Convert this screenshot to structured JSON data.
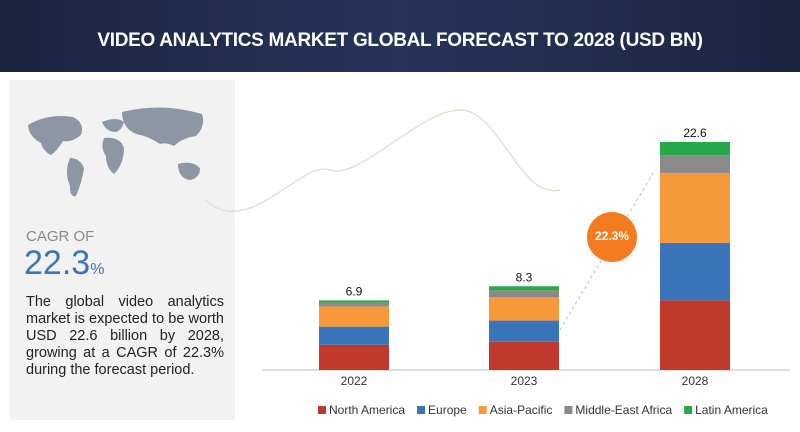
{
  "title": "VIDEO ANALYTICS MARKET GLOBAL FORECAST TO 2028 (USD BN)",
  "sidebar": {
    "label": "CAGR OF",
    "value": "22.3",
    "unit": "%",
    "text": "The global video analytics market is expected to be worth USD 22.6 billion by 2028, growing at a CAGR of 22.3% during the forecast period."
  },
  "chart_data": {
    "type": "stacked_bar",
    "categories": [
      "2022",
      "2023",
      "2028"
    ],
    "totals": [
      "6.9",
      "8.3",
      "22.6"
    ],
    "badge": "22.3%",
    "series": [
      {
        "name": "North America",
        "color": "#c0392b",
        "values": [
          2.5,
          2.8,
          6.9
        ]
      },
      {
        "name": "Europe",
        "color": "#3a74b9",
        "values": [
          1.8,
          2.1,
          5.7
        ]
      },
      {
        "name": "Asia-Pacific",
        "color": "#f7993b",
        "values": [
          2.0,
          2.3,
          6.9
        ]
      },
      {
        "name": "Middle-East Africa",
        "color": "#8a8a8a",
        "values": [
          0.4,
          0.7,
          1.8
        ]
      },
      {
        "name": "Latin America",
        "color": "#27a84a",
        "values": [
          0.2,
          0.4,
          1.3
        ]
      }
    ]
  }
}
